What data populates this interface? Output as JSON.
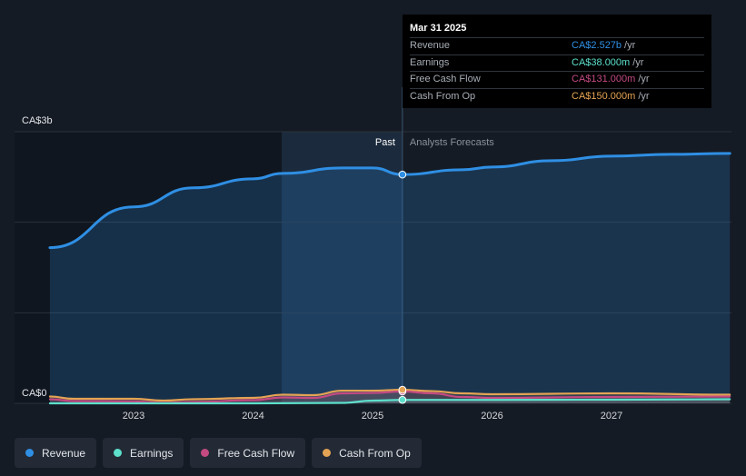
{
  "chart_data": {
    "type": "area",
    "y_axis": {
      "top_label": "CA$3b",
      "bottom_label": "CA$0",
      "ylim": [
        0,
        3000
      ]
    },
    "x_axis": {
      "ticks": [
        "2023",
        "2024",
        "2025",
        "2026",
        "2027"
      ],
      "tick_positions": [
        2023,
        2024,
        2025,
        2026,
        2027
      ],
      "xlim": [
        2022.3,
        2027.99
      ]
    },
    "grid": true,
    "divider": {
      "x": 2025.25,
      "past_label": "Past",
      "forecast_label": "Analysts Forecasts"
    },
    "series": [
      {
        "name": "Revenue",
        "key": "revenue",
        "color": "#2f8fe4",
        "points": [
          [
            2022.3,
            1720
          ],
          [
            2023.0,
            2170
          ],
          [
            2023.5,
            2380
          ],
          [
            2024.0,
            2480
          ],
          [
            2024.25,
            2540
          ],
          [
            2024.75,
            2600
          ],
          [
            2025.0,
            2600
          ],
          [
            2025.25,
            2527
          ],
          [
            2025.75,
            2580
          ],
          [
            2026.0,
            2610
          ],
          [
            2026.5,
            2680
          ],
          [
            2027.0,
            2730
          ],
          [
            2027.5,
            2750
          ],
          [
            2027.99,
            2760
          ]
        ]
      },
      {
        "name": "Earnings",
        "key": "earnings",
        "color": "#5de0cc",
        "points": [
          [
            2022.3,
            0
          ],
          [
            2023.0,
            0
          ],
          [
            2024.0,
            0
          ],
          [
            2024.75,
            5
          ],
          [
            2025.0,
            30
          ],
          [
            2025.25,
            38
          ],
          [
            2026.0,
            38
          ],
          [
            2027.0,
            40
          ],
          [
            2027.99,
            45
          ]
        ]
      },
      {
        "name": "Free Cash Flow",
        "key": "fcf",
        "color": "#c44a82",
        "points": [
          [
            2022.3,
            45
          ],
          [
            2022.5,
            25
          ],
          [
            2023.0,
            22
          ],
          [
            2023.25,
            5
          ],
          [
            2023.5,
            15
          ],
          [
            2024.0,
            35
          ],
          [
            2024.25,
            65
          ],
          [
            2024.5,
            60
          ],
          [
            2024.75,
            110
          ],
          [
            2025.0,
            115
          ],
          [
            2025.25,
            131
          ],
          [
            2025.5,
            110
          ],
          [
            2025.75,
            70
          ],
          [
            2026.0,
            60
          ],
          [
            2027.0,
            70
          ],
          [
            2027.99,
            75
          ]
        ]
      },
      {
        "name": "Cash From Op",
        "key": "cfo",
        "color": "#e4a354",
        "points": [
          [
            2022.3,
            75
          ],
          [
            2022.5,
            50
          ],
          [
            2023.0,
            50
          ],
          [
            2023.25,
            30
          ],
          [
            2023.5,
            45
          ],
          [
            2024.0,
            60
          ],
          [
            2024.25,
            95
          ],
          [
            2024.5,
            90
          ],
          [
            2024.75,
            140
          ],
          [
            2025.0,
            140
          ],
          [
            2025.25,
            150
          ],
          [
            2025.5,
            135
          ],
          [
            2025.75,
            110
          ],
          [
            2026.0,
            100
          ],
          [
            2027.0,
            110
          ],
          [
            2027.99,
            95
          ]
        ]
      }
    ]
  },
  "tooltip": {
    "date": "Mar 31 2025",
    "rows": [
      {
        "label": "Revenue",
        "value": "CA$2.527b",
        "unit": "/yr",
        "color": "#2f8fe4"
      },
      {
        "label": "Earnings",
        "value": "CA$38.000m",
        "unit": "/yr",
        "color": "#5de0cc"
      },
      {
        "label": "Free Cash Flow",
        "value": "CA$131.000m",
        "unit": "/yr",
        "color": "#c44a82"
      },
      {
        "label": "Cash From Op",
        "value": "CA$150.000m",
        "unit": "/yr",
        "color": "#e4a354"
      }
    ]
  },
  "legend": [
    {
      "label": "Revenue",
      "color": "#2f8fe4"
    },
    {
      "label": "Earnings",
      "color": "#5de0cc"
    },
    {
      "label": "Free Cash Flow",
      "color": "#c44a82"
    },
    {
      "label": "Cash From Op",
      "color": "#e4a354"
    }
  ]
}
